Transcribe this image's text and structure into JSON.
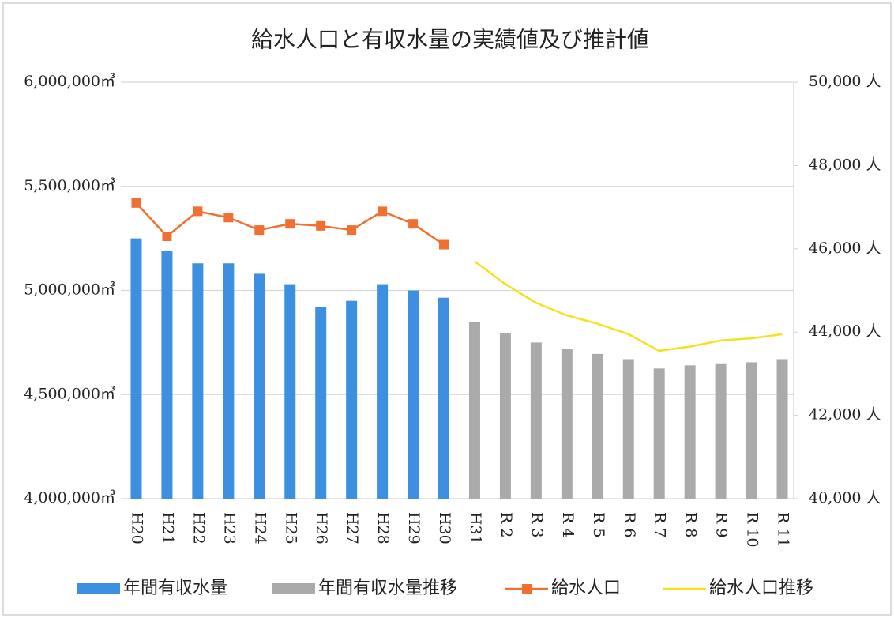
{
  "chart_data": {
    "type": "bar",
    "title": "給水人口と有収水量の実績値及び推計値",
    "categories": [
      "H20",
      "H21",
      "H22",
      "H23",
      "H24",
      "H25",
      "H26",
      "H27",
      "H28",
      "H29",
      "H30",
      "H31",
      "R 2",
      "R 3",
      "R 4",
      "R 5",
      "R 6",
      "R 7",
      "R 8",
      "R 9",
      "R 10",
      "R 11"
    ],
    "series": [
      {
        "name": "年間有収水量",
        "type": "bar",
        "color": "#3d8fe0",
        "values": [
          5250000,
          5190000,
          5130000,
          5130000,
          5080000,
          5030000,
          4920000,
          4950000,
          5030000,
          5000000,
          4965000,
          null,
          null,
          null,
          null,
          null,
          null,
          null,
          null,
          null,
          null,
          null
        ]
      },
      {
        "name": "年間有収水量推移",
        "type": "bar",
        "color": "#aaaaaa",
        "values": [
          null,
          null,
          null,
          null,
          null,
          null,
          null,
          null,
          null,
          null,
          null,
          4850000,
          4795000,
          4750000,
          4720000,
          4695000,
          4670000,
          4625000,
          4640000,
          4650000,
          4655000,
          4670000
        ]
      },
      {
        "name": "給水人口",
        "type": "line",
        "axis": "y2",
        "color": "#f07032",
        "marker": "square",
        "values": [
          47100,
          46300,
          46900,
          46750,
          46450,
          46600,
          46550,
          46450,
          46900,
          46600,
          46100,
          null,
          null,
          null,
          null,
          null,
          null,
          null,
          null,
          null,
          null,
          null
        ]
      },
      {
        "name": "給水人口推移",
        "type": "line",
        "axis": "y2",
        "color": "#f3e21c",
        "values": [
          null,
          null,
          null,
          null,
          null,
          null,
          null,
          null,
          null,
          null,
          null,
          45700,
          45150,
          44700,
          44400,
          44200,
          43950,
          43550,
          43650,
          43800,
          43850,
          43950
        ]
      }
    ],
    "ylim": [
      4000000,
      6000000
    ],
    "yticks": [
      {
        "value": 4000000,
        "label": "4,000,000㎥"
      },
      {
        "value": 4500000,
        "label": "4,500,000㎥"
      },
      {
        "value": 5000000,
        "label": "5,000,000㎥"
      },
      {
        "value": 5500000,
        "label": "5,500,000㎥"
      },
      {
        "value": 6000000,
        "label": "6,000,000㎥"
      }
    ],
    "y2lim": [
      40000,
      50000
    ],
    "y2ticks": [
      {
        "value": 40000,
        "label": "40,000 人"
      },
      {
        "value": 42000,
        "label": "42,000 人"
      },
      {
        "value": 44000,
        "label": "44,000 人"
      },
      {
        "value": 46000,
        "label": "46,000 人"
      },
      {
        "value": 48000,
        "label": "48,000 人"
      },
      {
        "value": 50000,
        "label": "50,000 人"
      }
    ],
    "grid": true,
    "legend": "bottom"
  }
}
